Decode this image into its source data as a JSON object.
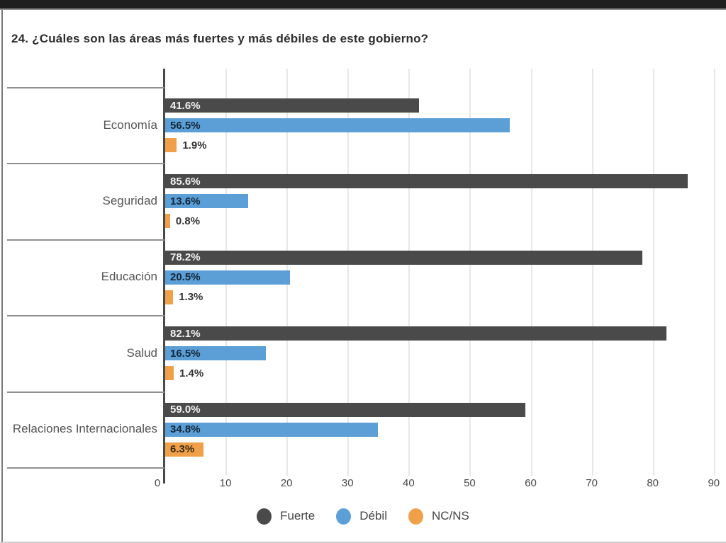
{
  "title": "24. ¿Cuáles son las áreas más fuertes y más débiles de este gobierno?",
  "chart_data": {
    "type": "bar",
    "orientation": "horizontal",
    "title": "24. ¿Cuáles son las áreas más fuertes y más débiles de este gobierno?",
    "categories": [
      "Economía",
      "Seguridad",
      "Educación",
      "Salud",
      "Relaciones Internacionales"
    ],
    "series": [
      {
        "name": "Fuerte",
        "color": "#4a4a4a",
        "inside_label_color": "#f2f2f2",
        "values": [
          41.6,
          85.6,
          78.2,
          82.1,
          59.0
        ],
        "labels": [
          "41.6%",
          "85.6%",
          "78.2%",
          "82.1%",
          "59.0%"
        ]
      },
      {
        "name": "Débil",
        "color": "#5b9fd6",
        "inside_label_color": "#14273a",
        "values": [
          56.5,
          13.6,
          20.5,
          16.5,
          34.8
        ],
        "labels": [
          "56.5%",
          "13.6%",
          "20.5%",
          "16.5%",
          "34.8%"
        ]
      },
      {
        "name": "NC/NS",
        "color": "#f1a04a",
        "inside_label_color": "#3a2c14",
        "values": [
          1.9,
          0.8,
          1.3,
          1.4,
          6.3
        ],
        "labels": [
          "1.9%",
          "0.8%",
          "1.3%",
          "1.4%",
          "6.3%"
        ]
      }
    ],
    "xticks": [
      0,
      10,
      20,
      30,
      40,
      50,
      60,
      70,
      80,
      90
    ],
    "xlim": [
      0,
      92
    ],
    "grid": true,
    "legend": [
      "Fuerte",
      "Débil",
      "NC/NS"
    ],
    "legend_position": "bottom",
    "outside_label_color": "#333333",
    "colors": {
      "grid_line": "#e8e8e8",
      "axis_line": "#4a4a4a",
      "row_separator": "#909090",
      "category_text": "#555555",
      "tick_text": "#4a4a4a",
      "top_bar": "#1e1e1e"
    }
  }
}
